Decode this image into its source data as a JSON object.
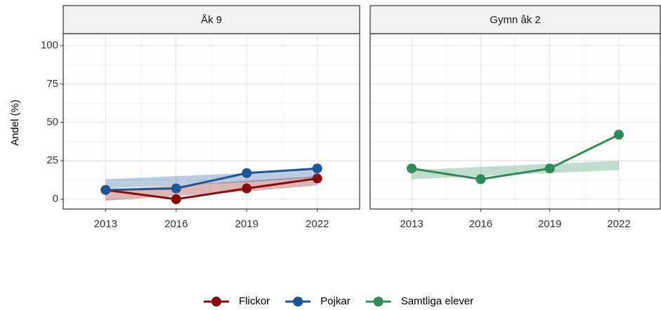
{
  "chart_data": [
    {
      "type": "line",
      "title": "Åk 9",
      "y_label": "Andel (%)",
      "x": [
        2013,
        2016,
        2019,
        2022
      ],
      "xlim": [
        2011.2,
        2023.8
      ],
      "ylim": [
        -6.4,
        107.8
      ],
      "yticks": [
        0,
        25,
        50,
        75,
        100
      ],
      "grid": true,
      "series": [
        {
          "name": "Flickor",
          "color": "#8b0a0a",
          "values": [
            6,
            0,
            7,
            13.5
          ],
          "lower": [
            -1,
            2,
            5,
            9
          ],
          "upper": [
            6,
            9,
            12,
            15
          ]
        },
        {
          "name": "Pojkar",
          "color": "#1f5597",
          "values": [
            6,
            7,
            17,
            20
          ],
          "lower": [
            7,
            9,
            11,
            14
          ],
          "upper": [
            13,
            15,
            17,
            20
          ]
        }
      ]
    },
    {
      "type": "line",
      "title": "Gymn åk 2",
      "x": [
        2013,
        2016,
        2019,
        2022
      ],
      "xlim": [
        2011.2,
        2023.8
      ],
      "ylim": [
        -6.4,
        107.8
      ],
      "grid": true,
      "series": [
        {
          "name": "Samtliga elever",
          "color": "#2e8b57",
          "values": [
            20,
            13,
            20,
            42
          ],
          "lower": [
            13,
            15,
            17,
            19
          ],
          "upper": [
            19,
            21,
            23,
            25
          ]
        }
      ]
    }
  ]
}
